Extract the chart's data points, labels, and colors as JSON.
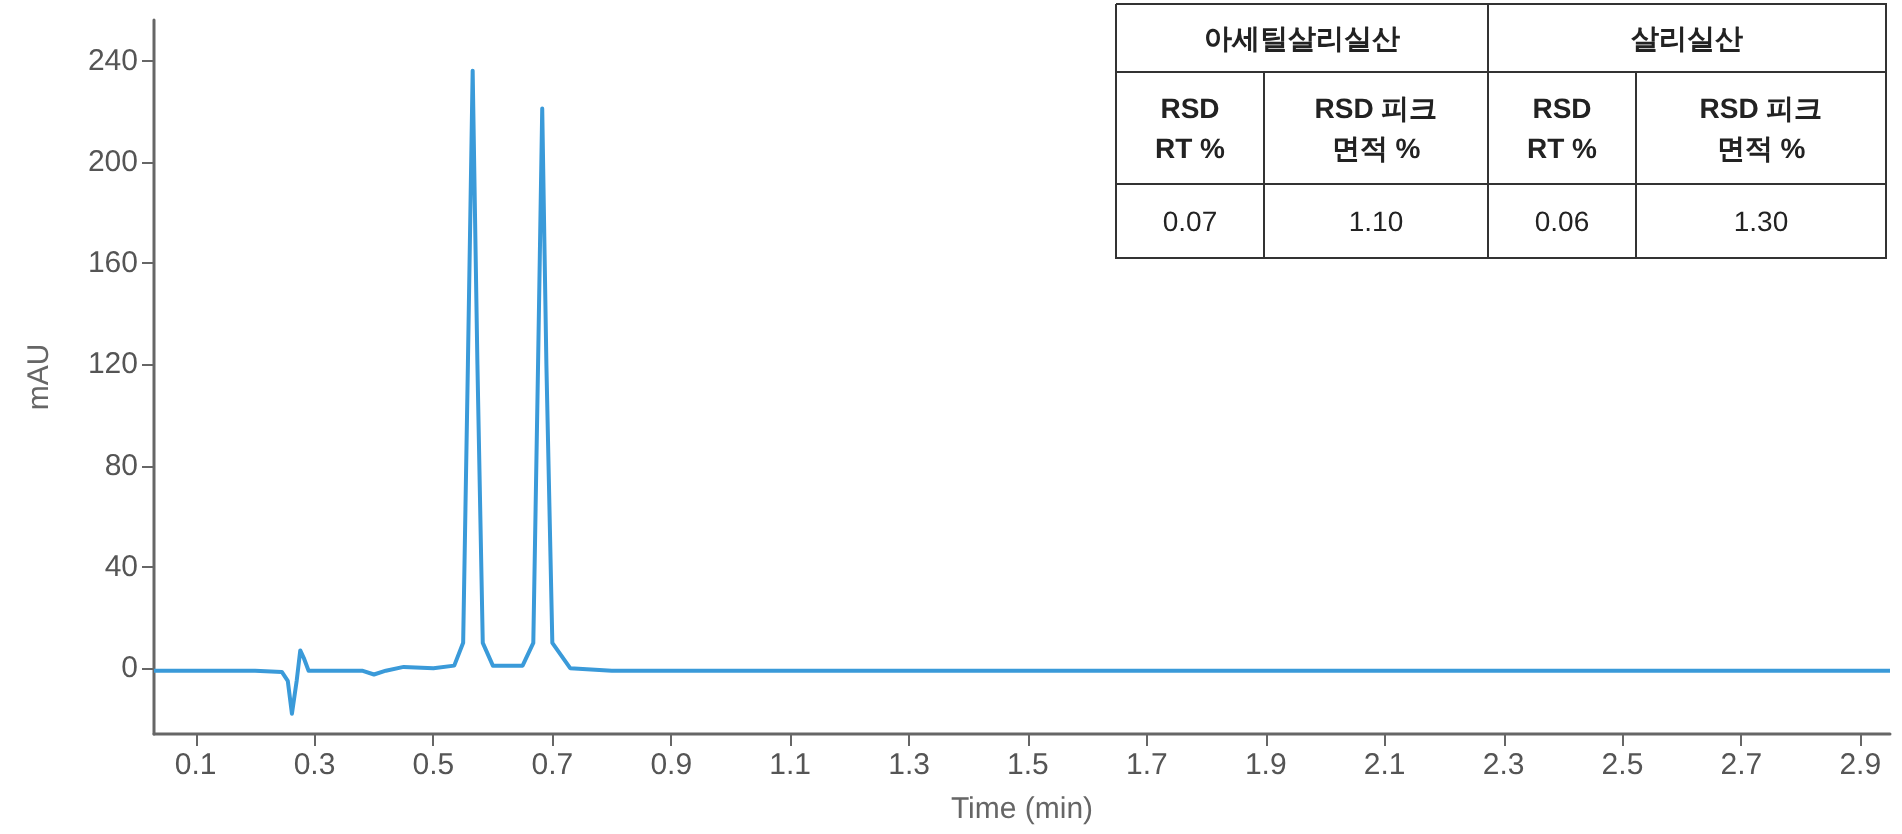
{
  "chart_data": {
    "type": "line",
    "xlabel": "Time (min)",
    "ylabel": "mAU",
    "x": [
      0.03,
      0.2,
      0.245,
      0.255,
      0.262,
      0.27,
      0.276,
      0.282,
      0.29,
      0.38,
      0.4,
      0.42,
      0.45,
      0.5,
      0.535,
      0.55,
      0.558,
      0.566,
      0.574,
      0.583,
      0.6,
      0.65,
      0.668,
      0.676,
      0.683,
      0.69,
      0.7,
      0.73,
      0.8,
      2.95
    ],
    "series": [
      {
        "color": "#3a9ad9",
        "values": [
          -1,
          -1,
          -1.5,
          -5,
          -18,
          -5,
          7,
          4,
          -1,
          -1,
          -2.5,
          -1,
          0.5,
          0,
          1,
          10,
          120,
          236,
          120,
          10,
          1,
          1,
          10,
          120,
          221,
          120,
          10,
          0,
          -1,
          -1
        ]
      }
    ],
    "xlim": [
      0.03,
      2.95
    ],
    "xticks": [
      0.1,
      0.3,
      0.5,
      0.7,
      0.9,
      1.1,
      1.3,
      1.5,
      1.7,
      1.9,
      2.1,
      2.3,
      2.5,
      2.7,
      2.9
    ],
    "ylim": [
      -26,
      256
    ],
    "yticks": [
      0,
      40,
      80,
      120,
      160,
      200,
      240
    ],
    "grid": false,
    "line_style": "solid",
    "annotations": [
      "아세틸살리실산",
      "살리실산",
      "RSD\nRT %",
      "RSD 피크\n면적 %",
      "RSD\nRT %",
      "RSD 피크\n면적 %",
      "0.07",
      "1.10",
      "0.06",
      "1.30"
    ]
  }
}
